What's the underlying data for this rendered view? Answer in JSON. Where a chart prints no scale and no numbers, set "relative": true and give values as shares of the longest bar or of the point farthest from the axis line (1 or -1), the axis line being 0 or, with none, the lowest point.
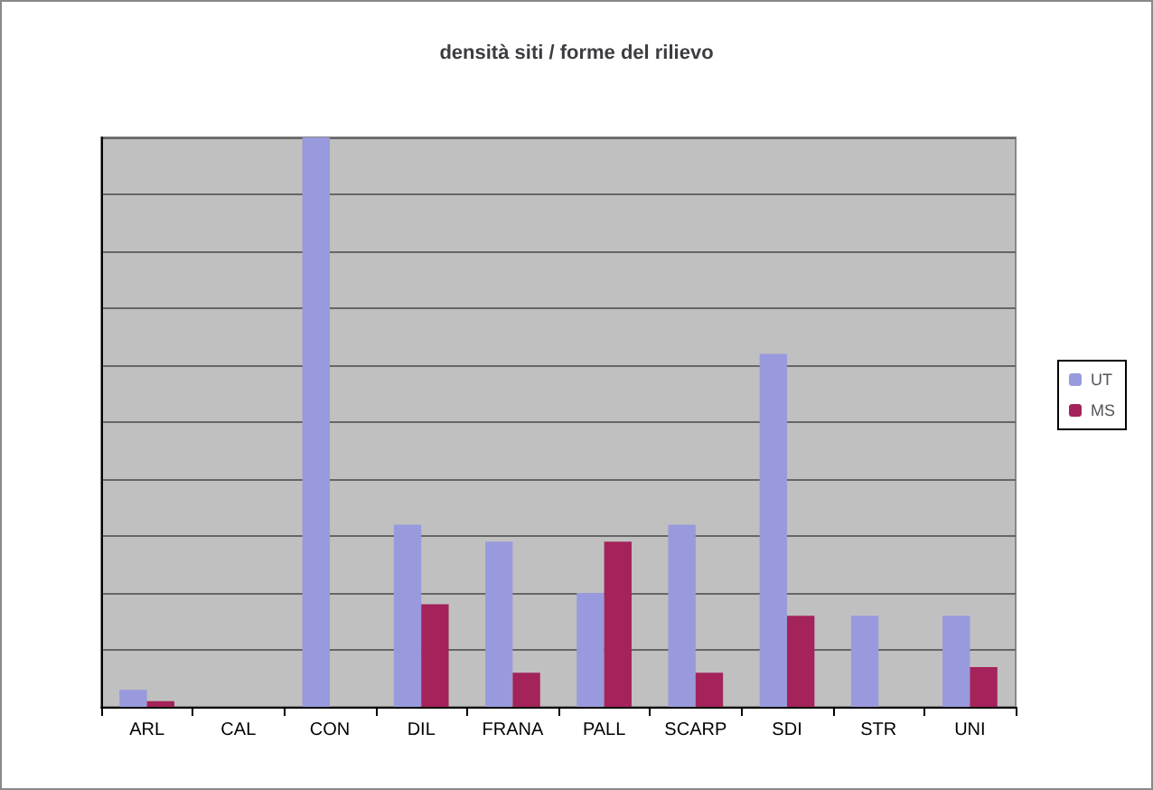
{
  "chart_data": {
    "type": "bar",
    "title": "densità siti / forme del rilievo",
    "relative": true,
    "grid": "y",
    "legend": "right",
    "categories": [
      "ARL",
      "CAL",
      "CON",
      "DIL",
      "FRANA",
      "PALL",
      "SCARP",
      "SDI",
      "STR",
      "UNI"
    ],
    "series": [
      {
        "name": "UT",
        "color": "#9999dd",
        "values": [
          0.03,
          0,
          1,
          0.32,
          0.29,
          0.2,
          0.32,
          0.62,
          0.16,
          0.16
        ]
      },
      {
        "name": "MS",
        "color": "#a3235a",
        "values": [
          0.01,
          0,
          0,
          0.18,
          0.06,
          0.29,
          0.06,
          0.16,
          0,
          0.07
        ]
      }
    ]
  }
}
